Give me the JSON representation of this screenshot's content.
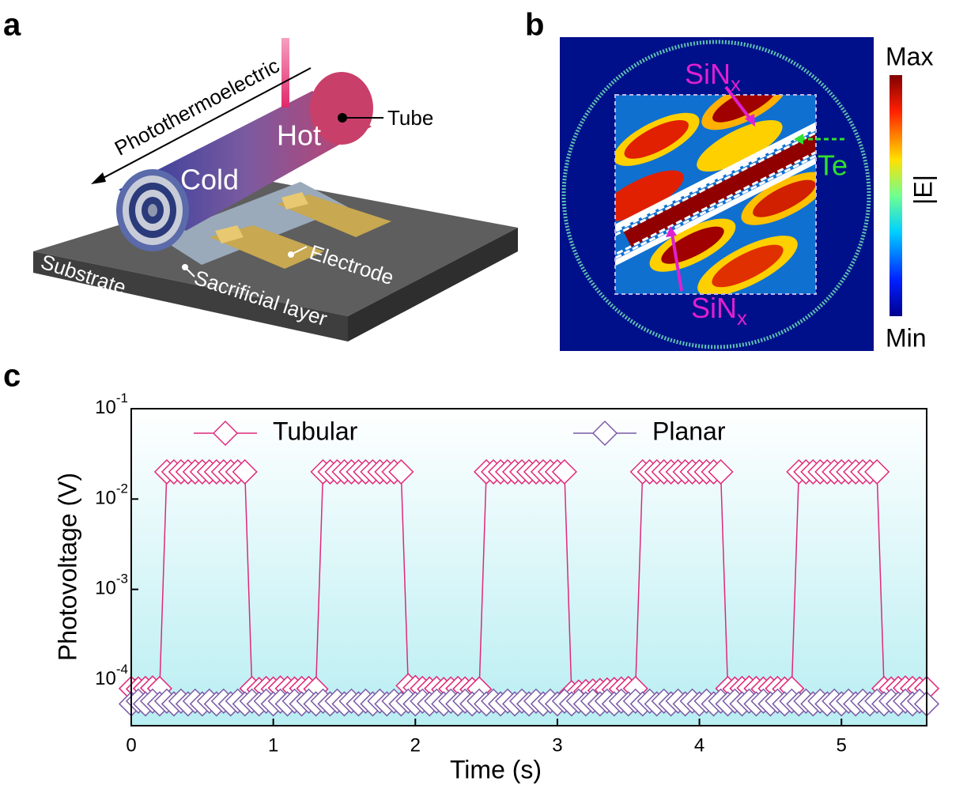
{
  "panel_labels": [
    "a",
    "b",
    "c"
  ],
  "panel_a": {
    "arrow_label": "Photothermoelectric",
    "hot": "Hot",
    "cold": "Cold",
    "tube": "Tube",
    "electrode": "Electrode",
    "substrate": "Substrate",
    "sacrificial": "Sacrificial layer"
  },
  "panel_b": {
    "sin_top": {
      "text": "SiN",
      "subscript": "x"
    },
    "sin_bottom": {
      "text": "SiN",
      "subscript": "x"
    },
    "te": "Te",
    "max": "Max",
    "min": "Min",
    "field": "|E|"
  },
  "chart_data": {
    "type": "line",
    "ylabel": "Photovoltage (V)",
    "xlabel": "Time (s)",
    "xlim": [
      0,
      5.6
    ],
    "xticks": [
      0,
      1,
      2,
      3,
      4,
      5
    ],
    "ylim": [
      3.1e-05,
      0.1
    ],
    "log_y": true,
    "yticks": [
      {
        "value": 0.1,
        "label": "10-1"
      },
      {
        "value": 0.01,
        "label": "10-2"
      },
      {
        "value": 0.001,
        "label": "10-3"
      },
      {
        "value": 0.0001,
        "label": "10-4"
      }
    ],
    "legend": "top",
    "x": [
      0,
      0.05,
      0.1,
      0.15,
      0.2,
      0.25,
      0.3,
      0.35,
      0.4,
      0.45,
      0.5,
      0.55,
      0.6,
      0.65,
      0.7,
      0.75,
      0.8,
      0.85,
      0.9,
      0.95,
      1,
      1.05,
      1.1,
      1.15,
      1.2,
      1.25,
      1.3,
      1.35,
      1.4,
      1.45,
      1.5,
      1.55,
      1.6,
      1.65,
      1.7,
      1.75,
      1.8,
      1.85,
      1.9,
      1.95,
      2,
      2.05,
      2.1,
      2.15,
      2.2,
      2.25,
      2.3,
      2.35,
      2.4,
      2.45,
      2.5,
      2.55,
      2.6,
      2.65,
      2.7,
      2.75,
      2.8,
      2.85,
      2.9,
      2.95,
      3,
      3.05,
      3.1,
      3.15,
      3.2,
      3.25,
      3.3,
      3.35,
      3.4,
      3.45,
      3.5,
      3.55,
      3.6,
      3.65,
      3.7,
      3.75,
      3.8,
      3.85,
      3.9,
      3.95,
      4,
      4.05,
      4.1,
      4.15,
      4.2,
      4.25,
      4.3,
      4.35,
      4.4,
      4.45,
      4.5,
      4.55,
      4.6,
      4.65,
      4.7,
      4.75,
      4.8,
      4.85,
      4.9,
      4.95,
      5,
      5.05,
      5.1,
      5.15,
      5.2,
      5.25,
      5.3,
      5.35,
      5.4,
      5.45,
      5.5,
      5.55,
      5.6
    ],
    "series": [
      {
        "name": "Tubular",
        "color": "#e0287a",
        "values": [
          8e-05,
          7.9e-05,
          8e-05,
          8.1e-05,
          8e-05,
          0.02,
          0.02,
          0.02,
          0.02,
          0.02,
          0.02,
          0.02,
          0.02,
          0.02,
          0.02,
          0.02,
          0.02,
          8e-05,
          7.8e-05,
          8e-05,
          7.9e-05,
          8.1e-05,
          8e-05,
          7.9e-05,
          8e-05,
          8e-05,
          7.9e-05,
          0.02,
          0.02,
          0.02,
          0.02,
          0.02,
          0.02,
          0.02,
          0.02,
          0.02,
          0.02,
          0.02,
          0.02,
          8.6e-05,
          8.2e-05,
          8e-05,
          7.9e-05,
          8e-05,
          7.8e-05,
          7.9e-05,
          8e-05,
          7.9e-05,
          7.8e-05,
          7.9e-05,
          0.02,
          0.02,
          0.02,
          0.02,
          0.02,
          0.02,
          0.02,
          0.02,
          0.02,
          0.02,
          0.02,
          0.02,
          7.2e-05,
          7.3e-05,
          7.4e-05,
          7.5e-05,
          7.6e-05,
          7.7e-05,
          7.8e-05,
          7.9e-05,
          8e-05,
          8e-05,
          0.02,
          0.02,
          0.02,
          0.02,
          0.02,
          0.02,
          0.02,
          0.02,
          0.02,
          0.02,
          0.02,
          0.02,
          8e-05,
          7.9e-05,
          8e-05,
          8.1e-05,
          8e-05,
          7.9e-05,
          8e-05,
          8e-05,
          7.9e-05,
          8e-05,
          0.02,
          0.02,
          0.02,
          0.02,
          0.02,
          0.02,
          0.02,
          0.02,
          0.02,
          0.02,
          0.02,
          0.02,
          8e-05,
          7.9e-05,
          8e-05,
          8.1e-05,
          8e-05,
          7.9e-05,
          8e-05
        ]
      },
      {
        "name": "Planar",
        "color": "#7b5aa6",
        "values": [
          5.4e-05,
          5.8e-05,
          5.4e-05,
          5.8e-05,
          5.4e-05,
          5.8e-05,
          5.4e-05,
          5.8e-05,
          5.4e-05,
          5.8e-05,
          5.4e-05,
          5.8e-05,
          5.4e-05,
          5.8e-05,
          5.4e-05,
          5.8e-05,
          5.4e-05,
          5.8e-05,
          5.4e-05,
          5.8e-05,
          5.4e-05,
          5.8e-05,
          5.4e-05,
          5.8e-05,
          5.4e-05,
          5.8e-05,
          5.4e-05,
          5.8e-05,
          5.4e-05,
          5.8e-05,
          5.4e-05,
          5.8e-05,
          5.4e-05,
          5.8e-05,
          5.4e-05,
          5.8e-05,
          5.4e-05,
          5.8e-05,
          5.4e-05,
          5.8e-05,
          5.4e-05,
          5.8e-05,
          5.4e-05,
          5.8e-05,
          5.4e-05,
          5.8e-05,
          5.4e-05,
          5.8e-05,
          5.4e-05,
          5.8e-05,
          5.4e-05,
          5.8e-05,
          5.4e-05,
          5.8e-05,
          5.4e-05,
          5.8e-05,
          5.4e-05,
          5.8e-05,
          5.4e-05,
          5.8e-05,
          5.4e-05,
          5.8e-05,
          5.4e-05,
          5.8e-05,
          5.4e-05,
          5.8e-05,
          5.4e-05,
          5.8e-05,
          5.4e-05,
          5.8e-05,
          5.4e-05,
          5.8e-05,
          5.4e-05,
          5.8e-05,
          5.4e-05,
          5.8e-05,
          5.4e-05,
          5.8e-05,
          5.4e-05,
          5.8e-05,
          5.4e-05,
          5.8e-05,
          5.4e-05,
          5.8e-05,
          5.4e-05,
          5.8e-05,
          5.4e-05,
          5.8e-05,
          5.4e-05,
          5.8e-05,
          5.4e-05,
          5.8e-05,
          5.4e-05,
          5.8e-05,
          5.4e-05,
          5.8e-05,
          5.4e-05,
          5.8e-05,
          5.4e-05,
          5.8e-05,
          5.4e-05,
          5.8e-05,
          5.4e-05,
          5.8e-05,
          5.4e-05,
          5.8e-05,
          5.4e-05,
          5.8e-05,
          5.4e-05,
          5.8e-05,
          5.4e-05,
          5.8e-05,
          5.4e-05
        ]
      }
    ]
  }
}
